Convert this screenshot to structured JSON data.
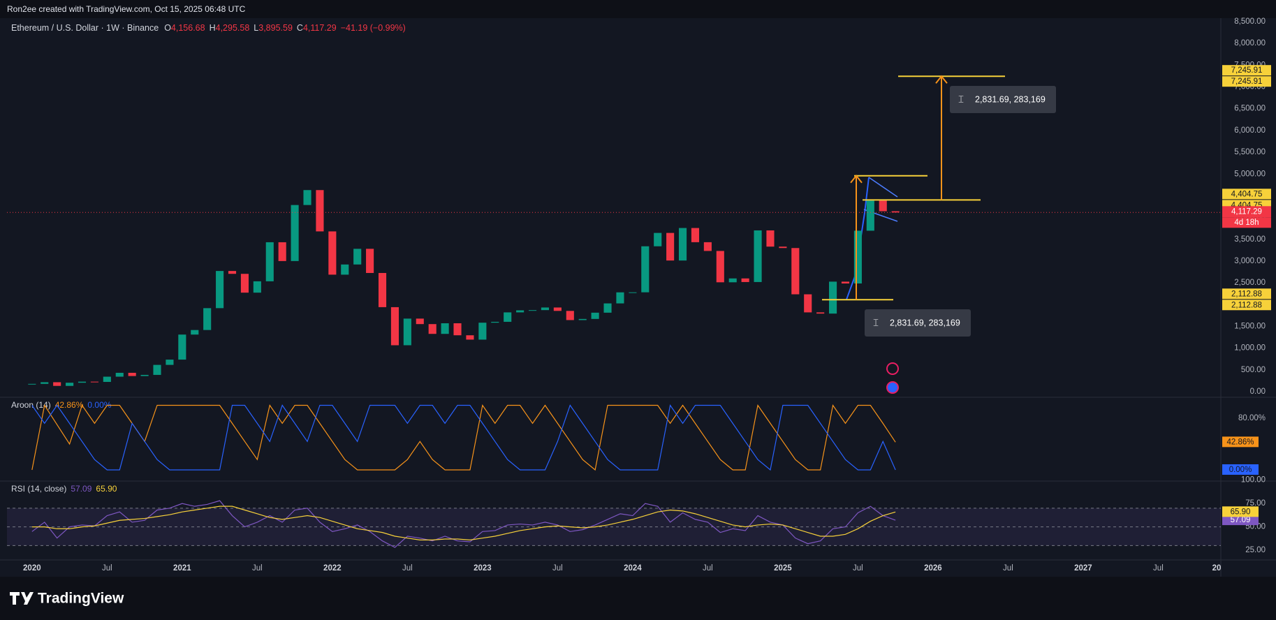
{
  "header": {
    "text": "Ron2ee created with TradingView.com, Oct 15, 2025 06:48 UTC"
  },
  "footer": {
    "brand": "TradingView"
  },
  "chart_data": [
    {
      "type": "candlestick",
      "title": "Ethereum / U.S. Dollar · 1W · Binance",
      "ohlc": {
        "labels": [
          "O",
          "H",
          "L",
          "C"
        ],
        "values": [
          4156.68,
          4295.58,
          3895.59,
          4117.29
        ],
        "value_labels": [
          "4,156.68",
          "4,295.58",
          "3,895.59",
          "4,117.29"
        ]
      },
      "change": -41.19,
      "change_pct": -0.99,
      "change_label": "−41.19 (−0.99%)",
      "x": [
        "2020-01",
        "2020-02",
        "2020-03",
        "2020-04",
        "2020-05",
        "2020-06",
        "2020-07",
        "2020-08",
        "2020-09",
        "2020-10",
        "2020-11",
        "2020-12",
        "2021-01",
        "2021-02",
        "2021-03",
        "2021-04",
        "2021-05",
        "2021-06",
        "2021-07",
        "2021-08",
        "2021-09",
        "2021-10",
        "2021-11",
        "2021-12",
        "2022-01",
        "2022-02",
        "2022-03",
        "2022-04",
        "2022-05",
        "2022-06",
        "2022-07",
        "2022-08",
        "2022-09",
        "2022-10",
        "2022-11",
        "2022-12",
        "2023-01",
        "2023-02",
        "2023-03",
        "2023-04",
        "2023-05",
        "2023-06",
        "2023-07",
        "2023-08",
        "2023-09",
        "2023-10",
        "2023-11",
        "2023-12",
        "2024-01",
        "2024-02",
        "2024-03",
        "2024-04",
        "2024-05",
        "2024-06",
        "2024-07",
        "2024-08",
        "2024-09",
        "2024-10",
        "2024-11",
        "2024-12",
        "2025-01",
        "2025-02",
        "2025-03",
        "2025-04",
        "2025-05",
        "2025-06",
        "2025-07",
        "2025-08",
        "2025-09",
        "2025-10"
      ],
      "values": [
        180,
        218,
        133,
        206,
        231,
        225,
        345,
        434,
        360,
        386,
        616,
        737,
        1312,
        1417,
        1919,
        2773,
        2707,
        2275,
        2536,
        3433,
        3001,
        4288,
        4631,
        3682,
        2688,
        2922,
        3282,
        2727,
        1942,
        1067,
        1679,
        1553,
        1328,
        1572,
        1296,
        1196,
        1585,
        1605,
        1822,
        1869,
        1874,
        1934,
        1856,
        1645,
        1671,
        1815,
        2028,
        2282,
        2283,
        3340,
        3647,
        3013,
        3760,
        3434,
        3233,
        2513,
        2602,
        2519,
        3705,
        3332,
        3300,
        2237,
        1822,
        1794,
        2528,
        2486,
        3698,
        4391,
        4145,
        4117.29
      ],
      "up_color": "#089981",
      "down_color": "#f23645",
      "xlim": [
        "2019-11",
        "2027-12"
      ],
      "xticks": [
        {
          "value": "2020-01",
          "label": "2020"
        },
        {
          "value": "2020-07",
          "label": "Jul"
        },
        {
          "value": "2021-01",
          "label": "2021"
        },
        {
          "value": "2021-07",
          "label": "Jul"
        },
        {
          "value": "2022-01",
          "label": "2022"
        },
        {
          "value": "2022-07",
          "label": "Jul"
        },
        {
          "value": "2023-01",
          "label": "2023"
        },
        {
          "value": "2023-07",
          "label": "Jul"
        },
        {
          "value": "2024-01",
          "label": "2024"
        },
        {
          "value": "2024-07",
          "label": "Jul"
        },
        {
          "value": "2025-01",
          "label": "2025"
        },
        {
          "value": "2025-07",
          "label": "Jul"
        },
        {
          "value": "2026-01",
          "label": "2026"
        },
        {
          "value": "2026-07",
          "label": "Jul"
        },
        {
          "value": "2027-01",
          "label": "2027"
        },
        {
          "value": "2027-07",
          "label": "Jul"
        },
        {
          "value": "2028-01",
          "label": "20"
        }
      ],
      "ylim": [
        -128,
        8580
      ],
      "yticks": [
        {
          "value": 0,
          "label": "0.00"
        },
        {
          "value": 500,
          "label": "500.00"
        },
        {
          "value": 1000,
          "label": "1,000.00"
        },
        {
          "value": 1500,
          "label": "1,500.00"
        },
        {
          "value": 2000,
          "label": "2,000.00"
        },
        {
          "value": 2500,
          "label": "2,500.00"
        },
        {
          "value": 3000,
          "label": "3,000.00"
        },
        {
          "value": 3500,
          "label": "3,500.00"
        },
        {
          "value": 4000,
          "label": "4,000.00"
        },
        {
          "value": 4500,
          "label": "4,500.00"
        },
        {
          "value": 5000,
          "label": "5,000.00"
        },
        {
          "value": 5500,
          "label": "5,500.00"
        },
        {
          "value": 6000,
          "label": "6,000.00"
        },
        {
          "value": 6500,
          "label": "6,500.00"
        },
        {
          "value": 7000,
          "label": "7,000.00"
        },
        {
          "value": 7500,
          "label": "7,500.00"
        },
        {
          "value": 8000,
          "label": "8,000.00"
        },
        {
          "value": 8500,
          "label": "8,500.00"
        }
      ],
      "grid": false,
      "price_tags": [
        {
          "value": 7245.91,
          "label": "7,245.91"
        },
        {
          "value": 4404.75,
          "label": "4,404.75"
        },
        {
          "value": 2112.88,
          "label": "2,112.88"
        }
      ],
      "pattern_top": 4960,
      "last_price": {
        "value": 4117.29,
        "label": "4,117.29",
        "countdown": "4d 18h",
        "color": "#f23645"
      },
      "tag_color": "#f7d13a",
      "measures": [
        {
          "text": "2,831.69, 283,169"
        },
        {
          "text": "2,831.69, 283,169"
        }
      ]
    },
    {
      "type": "line",
      "title": "Aroon (14)",
      "ylim": [
        -17.3,
        112.4
      ],
      "yticks": [
        {
          "value": 80,
          "label": "80.00%"
        }
      ],
      "series": [
        {
          "color": "#f7931a",
          "last_label": "42.86%",
          "values": [
            0,
            100,
            70,
            40,
            100,
            72,
            100,
            100,
            72,
            44,
            100,
            100,
            100,
            100,
            100,
            100,
            72,
            44,
            16,
            100,
            72,
            100,
            100,
            72,
            44,
            16,
            0,
            0,
            0,
            0,
            16,
            44,
            16,
            0,
            0,
            0,
            100,
            72,
            100,
            100,
            72,
            100,
            72,
            44,
            16,
            0,
            100,
            100,
            100,
            100,
            100,
            72,
            100,
            72,
            44,
            16,
            0,
            0,
            100,
            72,
            44,
            16,
            0,
            0,
            100,
            72,
            100,
            100,
            72,
            42.86
          ]
        },
        {
          "color": "#2962ff",
          "last_label": "0.00%",
          "values": [
            100,
            72,
            100,
            72,
            44,
            16,
            0,
            0,
            72,
            44,
            16,
            0,
            0,
            0,
            0,
            0,
            100,
            100,
            72,
            44,
            100,
            72,
            44,
            100,
            100,
            72,
            44,
            100,
            100,
            100,
            72,
            100,
            100,
            72,
            100,
            100,
            72,
            44,
            16,
            0,
            0,
            0,
            44,
            100,
            72,
            44,
            16,
            0,
            0,
            0,
            0,
            100,
            72,
            100,
            100,
            100,
            72,
            44,
            16,
            0,
            100,
            100,
            100,
            72,
            44,
            16,
            0,
            0,
            44,
            0
          ]
        }
      ]
    },
    {
      "type": "line",
      "title": "RSI (14, close)",
      "ylim": [
        14.6,
        99
      ],
      "yticks": [
        {
          "value": 100,
          "label": "100.00"
        },
        {
          "value": 75,
          "label": "75.00"
        },
        {
          "value": 50,
          "label": "50.00"
        },
        {
          "value": 25,
          "label": "25.00"
        }
      ],
      "levels": [
        30,
        50,
        70
      ],
      "series": [
        {
          "color": "#7e57c2",
          "last_label": "57.09",
          "values": [
            45,
            55,
            38,
            50,
            52,
            51,
            62,
            66,
            55,
            57,
            68,
            70,
            75,
            72,
            74,
            78,
            62,
            50,
            55,
            62,
            55,
            68,
            70,
            55,
            45,
            48,
            52,
            45,
            35,
            28,
            40,
            38,
            35,
            40,
            35,
            34,
            45,
            46,
            52,
            53,
            52,
            55,
            52,
            45,
            47,
            52,
            58,
            64,
            62,
            75,
            72,
            55,
            65,
            58,
            55,
            44,
            48,
            46,
            62,
            55,
            52,
            38,
            32,
            35,
            48,
            50,
            65,
            72,
            62,
            57.09
          ]
        },
        {
          "color": "#f7d13a",
          "last_label": "65.90",
          "values": [
            50,
            50,
            48,
            48,
            50,
            51,
            54,
            57,
            58,
            59,
            61,
            63,
            66,
            68,
            70,
            72,
            72,
            68,
            64,
            60,
            58,
            60,
            62,
            60,
            56,
            52,
            48,
            46,
            44,
            40,
            38,
            36,
            36,
            37,
            37,
            36,
            38,
            40,
            43,
            46,
            48,
            50,
            51,
            50,
            49,
            50,
            52,
            55,
            58,
            62,
            66,
            68,
            67,
            64,
            60,
            56,
            52,
            50,
            52,
            53,
            52,
            48,
            44,
            40,
            40,
            42,
            48,
            56,
            62,
            65.9
          ]
        }
      ]
    }
  ]
}
